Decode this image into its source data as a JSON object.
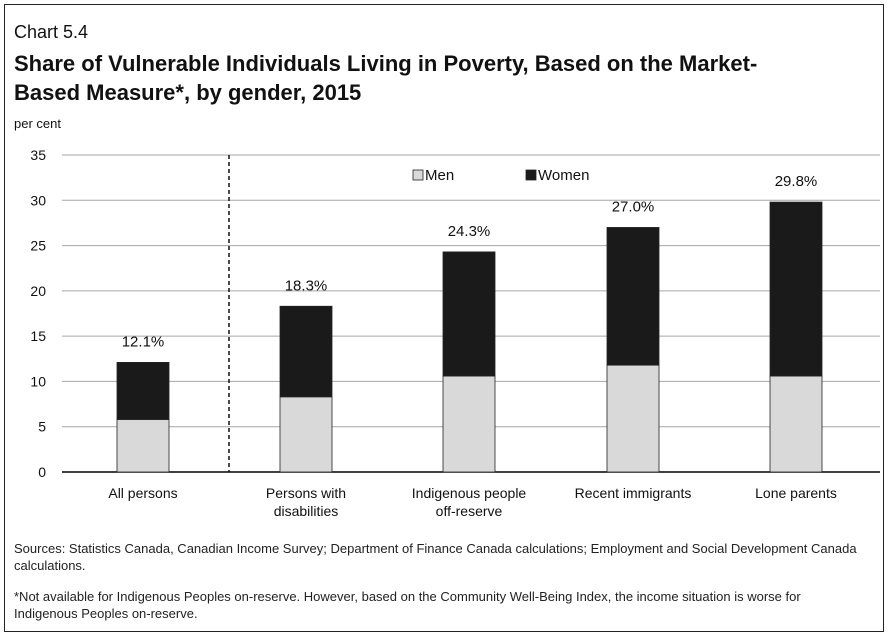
{
  "chart_label": "Chart 5.4",
  "title": "Share of Vulnerable Individuals Living in Poverty, Based on the Market-Based Measure*, by gender, 2015",
  "sources": "Sources: Statistics Canada, Canadian Income Survey; Department of Finance Canada calculations; Employment and Social Development Canada calculations.",
  "footnote": "*Not available for Indigenous Peoples on-reserve. However, based on the Community Well-Being Index, the income situation is worse for Indigenous Peoples on-reserve.",
  "chart_data": {
    "type": "bar",
    "stacked": true,
    "ylabel": "per cent",
    "ylim": [
      0,
      35
    ],
    "yticks": [
      0,
      5,
      10,
      15,
      20,
      25,
      30,
      35
    ],
    "grid": true,
    "legend_position": "top-center",
    "categories": [
      [
        "All persons"
      ],
      [
        "Persons with",
        "disabilities"
      ],
      [
        "Indigenous people",
        "off-reserve"
      ],
      [
        "Recent immigrants"
      ],
      [
        "Lone parents"
      ]
    ],
    "series": [
      {
        "name": "Men",
        "color": "#d9d9d9",
        "values": [
          5.8,
          8.3,
          10.6,
          11.8,
          10.6
        ]
      },
      {
        "name": "Women",
        "color": "#1a1a1a",
        "values": [
          6.3,
          10.0,
          13.7,
          15.2,
          19.2
        ]
      }
    ],
    "total_labels": [
      "12.1%",
      "18.3%",
      "24.3%",
      "27.0%",
      "29.8%"
    ],
    "totals": [
      12.1,
      18.3,
      24.3,
      27.0,
      29.8
    ],
    "separator_after_index": 0
  }
}
